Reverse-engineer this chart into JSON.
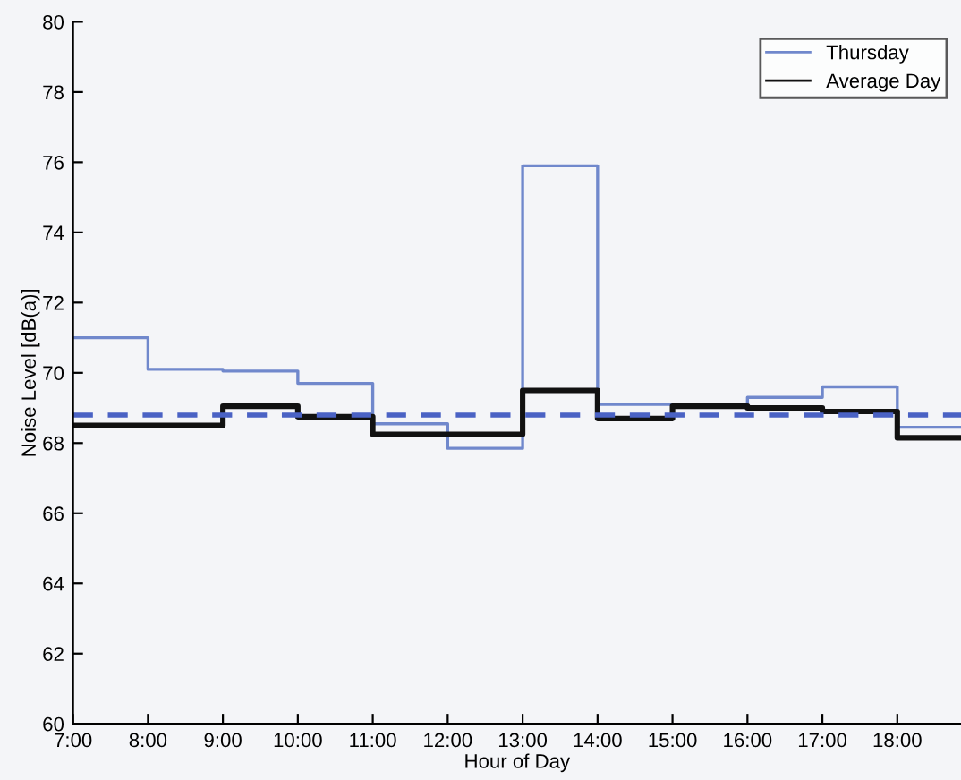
{
  "chart_data": {
    "type": "step",
    "xlabel": "Hour of Day",
    "ylabel": "Noise Level [dB(a)]",
    "x": [
      7,
      8,
      9,
      10,
      11,
      12,
      13,
      14,
      15,
      16,
      17,
      18,
      18.85
    ],
    "series": [
      {
        "name": "Thursday",
        "color": "#7088cc",
        "values": [
          71.0,
          70.1,
          70.05,
          69.7,
          68.55,
          67.85,
          75.9,
          69.1,
          69.05,
          69.3,
          69.6,
          68.45,
          68.45
        ]
      },
      {
        "name": "Average Day",
        "color": "#111111",
        "values": [
          68.5,
          68.5,
          69.05,
          68.75,
          68.25,
          68.25,
          69.5,
          68.7,
          69.05,
          69.0,
          68.9,
          68.15,
          68.15
        ]
      }
    ],
    "ref_lines": [
      {
        "axis": "y",
        "value": 68.8,
        "color": "#4a62c4",
        "line_style": "dashed"
      }
    ],
    "xlim": [
      7,
      18.85
    ],
    "xticks": [
      {
        "value": 7,
        "label": "7:00"
      },
      {
        "value": 8,
        "label": "8:00"
      },
      {
        "value": 9,
        "label": "9:00"
      },
      {
        "value": 10,
        "label": "10:00"
      },
      {
        "value": 11,
        "label": "11:00"
      },
      {
        "value": 12,
        "label": "12:00"
      },
      {
        "value": 13,
        "label": "13:00"
      },
      {
        "value": 14,
        "label": "14:00"
      },
      {
        "value": 15,
        "label": "15:00"
      },
      {
        "value": 16,
        "label": "16:00"
      },
      {
        "value": 17,
        "label": "17:00"
      },
      {
        "value": 18,
        "label": "18:00"
      }
    ],
    "ylim": [
      60,
      80
    ],
    "yticks": [
      60,
      62,
      64,
      66,
      68,
      70,
      72,
      74,
      76,
      78,
      80
    ],
    "grid": false,
    "legend": "top right"
  }
}
